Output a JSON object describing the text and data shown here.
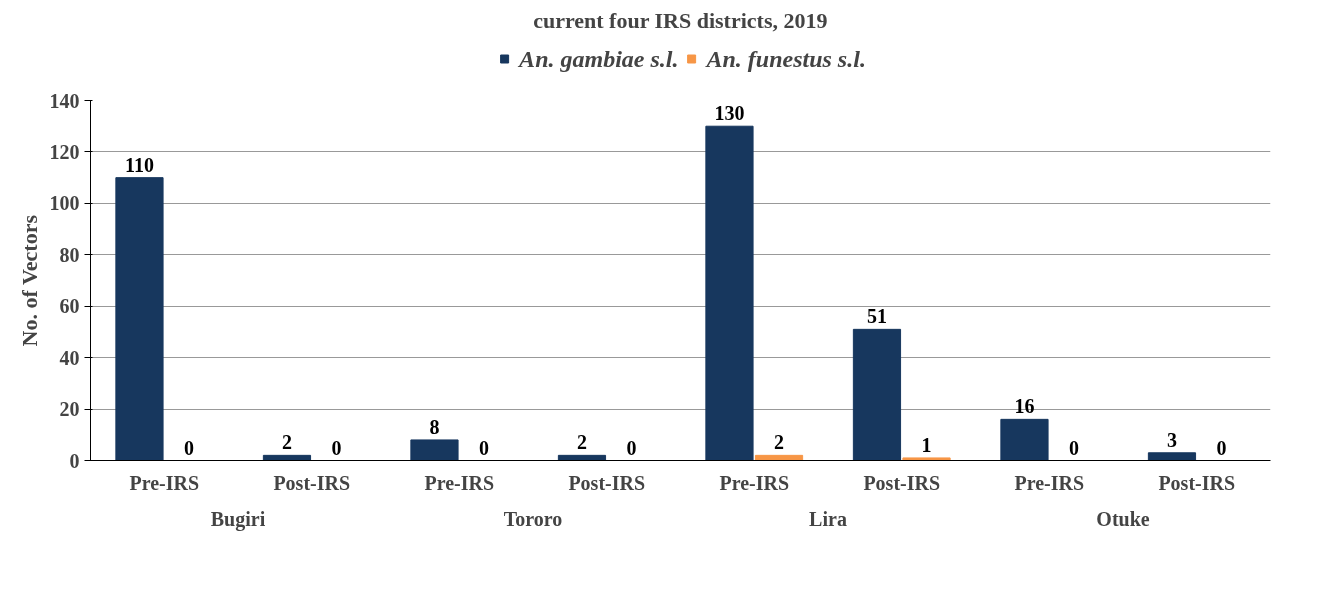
{
  "chart_data": {
    "type": "bar",
    "title": "current four IRS districts, 2019",
    "ylabel": "No. of Vectors",
    "categories": [
      "Pre-IRS",
      "Post-IRS",
      "Pre-IRS",
      "Post-IRS",
      "Pre-IRS",
      "Post-IRS",
      "Pre-IRS",
      "Post-IRS"
    ],
    "annotations": [
      "Bugiri",
      "Tororo",
      "Lira",
      "Otuke"
    ],
    "series": [
      {
        "name": "An. gambiae s.l.",
        "color": "#17375e",
        "values": [
          110,
          2,
          8,
          2,
          130,
          51,
          16,
          3
        ]
      },
      {
        "name": "An. funestus s.l.",
        "color": "#f79646",
        "values": [
          0,
          0,
          0,
          0,
          2,
          1,
          0,
          0
        ]
      }
    ],
    "ylim": [
      0,
      140
    ],
    "yticks": [
      0,
      20,
      40,
      60,
      80,
      100,
      120,
      140
    ],
    "grid": "y",
    "legend": "top",
    "data_labels": true
  }
}
